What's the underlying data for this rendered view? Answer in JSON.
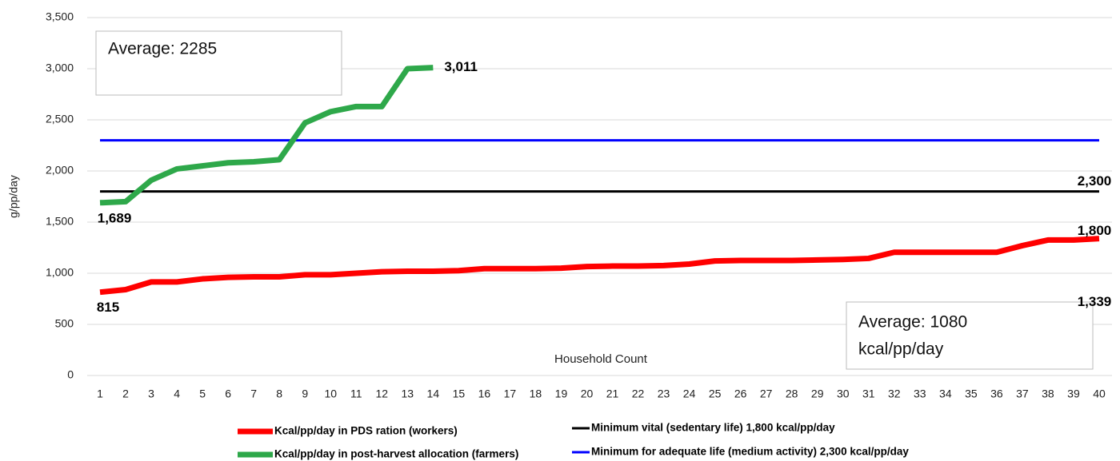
{
  "chart_data": {
    "type": "line",
    "y_label": "g/pp/day",
    "x_label": "Household Count",
    "annotations": [
      "Average: 2285",
      "Average: 1080",
      "kcal/pp/day"
    ],
    "categories": [
      1,
      2,
      3,
      4,
      5,
      6,
      7,
      8,
      9,
      10,
      11,
      12,
      13,
      14,
      15,
      16,
      17,
      18,
      19,
      20,
      21,
      22,
      23,
      24,
      25,
      26,
      27,
      28,
      29,
      30,
      31,
      32,
      33,
      34,
      35,
      36,
      37,
      38,
      39,
      40
    ],
    "series": [
      {
        "name": "Kcal/pp/day in PDS ration (workers)",
        "color": "#ff0000",
        "width": 7,
        "values": [
          815,
          840,
          915,
          915,
          945,
          960,
          965,
          965,
          985,
          985,
          1000,
          1015,
          1020,
          1020,
          1025,
          1045,
          1045,
          1045,
          1050,
          1065,
          1070,
          1070,
          1075,
          1090,
          1120,
          1125,
          1125,
          1125,
          1130,
          1135,
          1145,
          1205,
          1205,
          1205,
          1205,
          1205,
          1270,
          1325,
          1325,
          1339
        ],
        "value_labels": [
          "815",
          null,
          null,
          null,
          null,
          null,
          null,
          null,
          null,
          null,
          null,
          null,
          null,
          null,
          null,
          null,
          null,
          null,
          null,
          null,
          null,
          null,
          null,
          null,
          null,
          null,
          null,
          null,
          null,
          null,
          null,
          null,
          null,
          null,
          null,
          null,
          null,
          null,
          null,
          "1,339"
        ]
      },
      {
        "name": "Kcal/pp/day in post-harvest allocation (farmers)",
        "color": "#2ea84a",
        "width": 7,
        "values": [
          1689,
          1700,
          1910,
          2020,
          2050,
          2080,
          2090,
          2110,
          2470,
          2580,
          2630,
          2630,
          3000,
          3011,
          null,
          null,
          null,
          null,
          null,
          null,
          null,
          null,
          null,
          null,
          null,
          null,
          null,
          null,
          null,
          null,
          null,
          null,
          null,
          null,
          null,
          null,
          null,
          null,
          null,
          null
        ],
        "value_labels": [
          "1,689",
          null,
          null,
          null,
          null,
          null,
          null,
          null,
          null,
          null,
          null,
          null,
          null,
          "3,011",
          null,
          null,
          null,
          null,
          null,
          null,
          null,
          null,
          null,
          null,
          null,
          null,
          null,
          null,
          null,
          null,
          null,
          null,
          null,
          null,
          null,
          null,
          null,
          null,
          null,
          null
        ]
      },
      {
        "name": "Minimum vital (sedentary life) 1,800 kcal/pp/day",
        "color": "#000000",
        "width": 3,
        "values": [
          1800,
          1800,
          1800,
          1800,
          1800,
          1800,
          1800,
          1800,
          1800,
          1800,
          1800,
          1800,
          1800,
          1800,
          1800,
          1800,
          1800,
          1800,
          1800,
          1800,
          1800,
          1800,
          1800,
          1800,
          1800,
          1800,
          1800,
          1800,
          1800,
          1800,
          1800,
          1800,
          1800,
          1800,
          1800,
          1800,
          1800,
          1800,
          1800,
          1800
        ],
        "value_labels": [
          null,
          null,
          null,
          null,
          null,
          null,
          null,
          null,
          null,
          null,
          null,
          null,
          null,
          null,
          null,
          null,
          null,
          null,
          null,
          null,
          null,
          null,
          null,
          null,
          null,
          null,
          null,
          null,
          null,
          null,
          null,
          null,
          null,
          null,
          null,
          null,
          null,
          null,
          null,
          "1,800"
        ]
      },
      {
        "name": "Minimum for adequate life (medium activity) 2,300 kcal/pp/day",
        "color": "#0000ff",
        "width": 3,
        "values": [
          2300,
          2300,
          2300,
          2300,
          2300,
          2300,
          2300,
          2300,
          2300,
          2300,
          2300,
          2300,
          2300,
          2300,
          2300,
          2300,
          2300,
          2300,
          2300,
          2300,
          2300,
          2300,
          2300,
          2300,
          2300,
          2300,
          2300,
          2300,
          2300,
          2300,
          2300,
          2300,
          2300,
          2300,
          2300,
          2300,
          2300,
          2300,
          2300,
          2300
        ],
        "value_labels": [
          null,
          null,
          null,
          null,
          null,
          null,
          null,
          null,
          null,
          null,
          null,
          null,
          null,
          null,
          null,
          null,
          null,
          null,
          null,
          null,
          null,
          null,
          null,
          null,
          null,
          null,
          null,
          null,
          null,
          null,
          null,
          null,
          null,
          null,
          null,
          null,
          null,
          null,
          null,
          "2,300"
        ]
      }
    ],
    "ylim": [
      0,
      3500
    ],
    "yticks": [
      0,
      500,
      {
        "value": 1000,
        "label": "1,000"
      },
      {
        "value": 1500,
        "label": "1,500"
      },
      {
        "value": 2000,
        "label": "2,000"
      },
      {
        "value": 2500,
        "label": "2,500"
      },
      {
        "value": 3000,
        "label": "3,000"
      },
      {
        "value": 3500,
        "label": "3,500"
      }
    ],
    "grid": true
  }
}
